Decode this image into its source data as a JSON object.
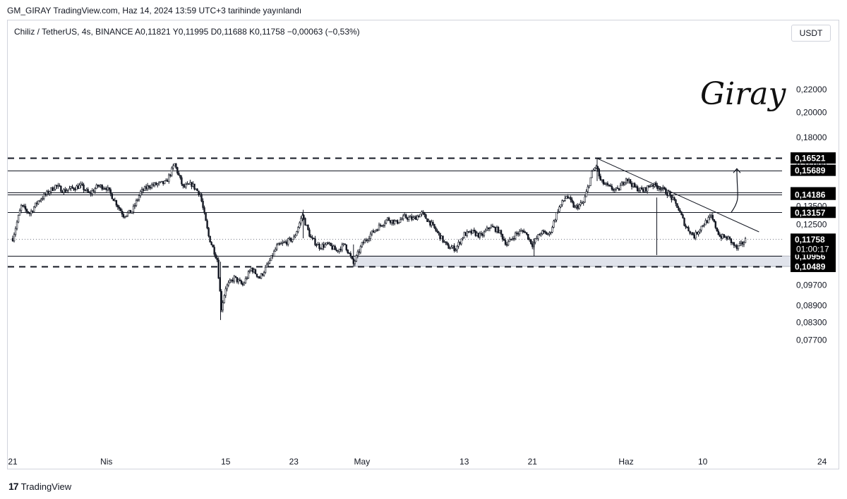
{
  "header": {
    "published": "GM_GIRAY TradingView.com, Haz 14, 2024 13:59 UTC+3 tarihinde yayınlandı",
    "symbol_line": "Chiliz / TetherUS, 4s, BINANCE  A0,11821  Y0,11995  D0,11688  K0,11758  −0,00063 (−0,53%)",
    "currency": "USDT"
  },
  "signature": "Giray",
  "footer": {
    "brand_mark": "17",
    "brand": "TradingView"
  },
  "colors": {
    "up": "#26a69a",
    "candle": "#131722",
    "tag_bg": "#000000",
    "zone": "#e0e3eb"
  },
  "chart_data": {
    "type": "candlestick",
    "title": "Chiliz / TetherUS, 4s, BINANCE",
    "y_axis": {
      "min": 0.074,
      "max": 0.223,
      "scale": "log",
      "ticks": [
        "0,22000",
        "0,20000",
        "0,18000",
        "0,16000",
        "0,13500",
        "0,12500",
        "0,09700",
        "0,08900",
        "0,08300",
        "0,07700"
      ]
    },
    "x_axis": {
      "ticks": [
        {
          "label": "21",
          "day": 0
        },
        {
          "label": "Nis",
          "day": 11
        },
        {
          "label": "15",
          "day": 25
        },
        {
          "label": "23",
          "day": 33
        },
        {
          "label": "May",
          "day": 41
        },
        {
          "label": "13",
          "day": 53
        },
        {
          "label": "21",
          "day": 61
        },
        {
          "label": "Haz",
          "day": 72
        },
        {
          "label": "10",
          "day": 81
        },
        {
          "label": "24",
          "day": 95
        }
      ]
    },
    "price_levels": [
      {
        "label": "0,16521",
        "value": 0.16521,
        "style": "dashed"
      },
      {
        "label": "0,15689",
        "value": 0.15689,
        "style": "solid"
      },
      {
        "label": "0,14281",
        "value": 0.14281,
        "style": "solid"
      },
      {
        "label": "0,14186",
        "value": 0.14186,
        "style": "solid"
      },
      {
        "label": "0,13157",
        "value": 0.13157,
        "style": "solid"
      },
      {
        "label": "0,10956",
        "value": 0.10956,
        "style": "solid"
      },
      {
        "label": "0,10489",
        "value": 0.10489,
        "style": "dashed"
      }
    ],
    "last_price": {
      "label": "0,11758",
      "value": 0.11758,
      "countdown": "01:00:17"
    },
    "support_zone": {
      "from_day": 40,
      "to_day": 94,
      "low": 0.10489,
      "high": 0.10956
    },
    "trendline": {
      "start_day": 68.5,
      "start_value": 0.1652,
      "end_day": 89,
      "end_value": 0.1185
    },
    "arrow": {
      "day": 85,
      "from_value": 0.1315,
      "to_value": 0.158
    },
    "path": [
      [
        0,
        0.118
      ],
      [
        1,
        0.135
      ],
      [
        2,
        0.131
      ],
      [
        3,
        0.138
      ],
      [
        5,
        0.147
      ],
      [
        6,
        0.144
      ],
      [
        8,
        0.147
      ],
      [
        9,
        0.142
      ],
      [
        10,
        0.147
      ],
      [
        11,
        0.146
      ],
      [
        12,
        0.138
      ],
      [
        13,
        0.13
      ],
      [
        14,
        0.132
      ],
      [
        15,
        0.143
      ],
      [
        16,
        0.147
      ],
      [
        18,
        0.149
      ],
      [
        19,
        0.161
      ],
      [
        20,
        0.146
      ],
      [
        21,
        0.148
      ],
      [
        22,
        0.142
      ],
      [
        23,
        0.119
      ],
      [
        24,
        0.108
      ],
      [
        24.5,
        0.088
      ],
      [
        25,
        0.096
      ],
      [
        26,
        0.1
      ],
      [
        27,
        0.097
      ],
      [
        28,
        0.104
      ],
      [
        29,
        0.1
      ],
      [
        30,
        0.106
      ],
      [
        31,
        0.114
      ],
      [
        33,
        0.118
      ],
      [
        34,
        0.13
      ],
      [
        35,
        0.118
      ],
      [
        36,
        0.114
      ],
      [
        37,
        0.115
      ],
      [
        38,
        0.112
      ],
      [
        39,
        0.115
      ],
      [
        40,
        0.106
      ],
      [
        41,
        0.115
      ],
      [
        42,
        0.12
      ],
      [
        43,
        0.124
      ],
      [
        44,
        0.128
      ],
      [
        45,
        0.126
      ],
      [
        46,
        0.129
      ],
      [
        47,
        0.128
      ],
      [
        48,
        0.131
      ],
      [
        49,
        0.126
      ],
      [
        50,
        0.12
      ],
      [
        51,
        0.114
      ],
      [
        52,
        0.113
      ],
      [
        53,
        0.12
      ],
      [
        54,
        0.121
      ],
      [
        55,
        0.119
      ],
      [
        56,
        0.124
      ],
      [
        57,
        0.122
      ],
      [
        58,
        0.115
      ],
      [
        59,
        0.12
      ],
      [
        60,
        0.122
      ],
      [
        61,
        0.115
      ],
      [
        62,
        0.121
      ],
      [
        63,
        0.12
      ],
      [
        64,
        0.133
      ],
      [
        65,
        0.141
      ],
      [
        66,
        0.134
      ],
      [
        67,
        0.137
      ],
      [
        68,
        0.155
      ],
      [
        68.5,
        0.16
      ],
      [
        69,
        0.15
      ],
      [
        70,
        0.146
      ],
      [
        71,
        0.144
      ],
      [
        72,
        0.152
      ],
      [
        73,
        0.146
      ],
      [
        74,
        0.144
      ],
      [
        75,
        0.148
      ],
      [
        76,
        0.146
      ],
      [
        77,
        0.142
      ],
      [
        78,
        0.135
      ],
      [
        79,
        0.124
      ],
      [
        80,
        0.119
      ],
      [
        81,
        0.125
      ],
      [
        82,
        0.129
      ],
      [
        83,
        0.119
      ],
      [
        84,
        0.118
      ],
      [
        85,
        0.113
      ],
      [
        86,
        0.117
      ]
    ]
  }
}
